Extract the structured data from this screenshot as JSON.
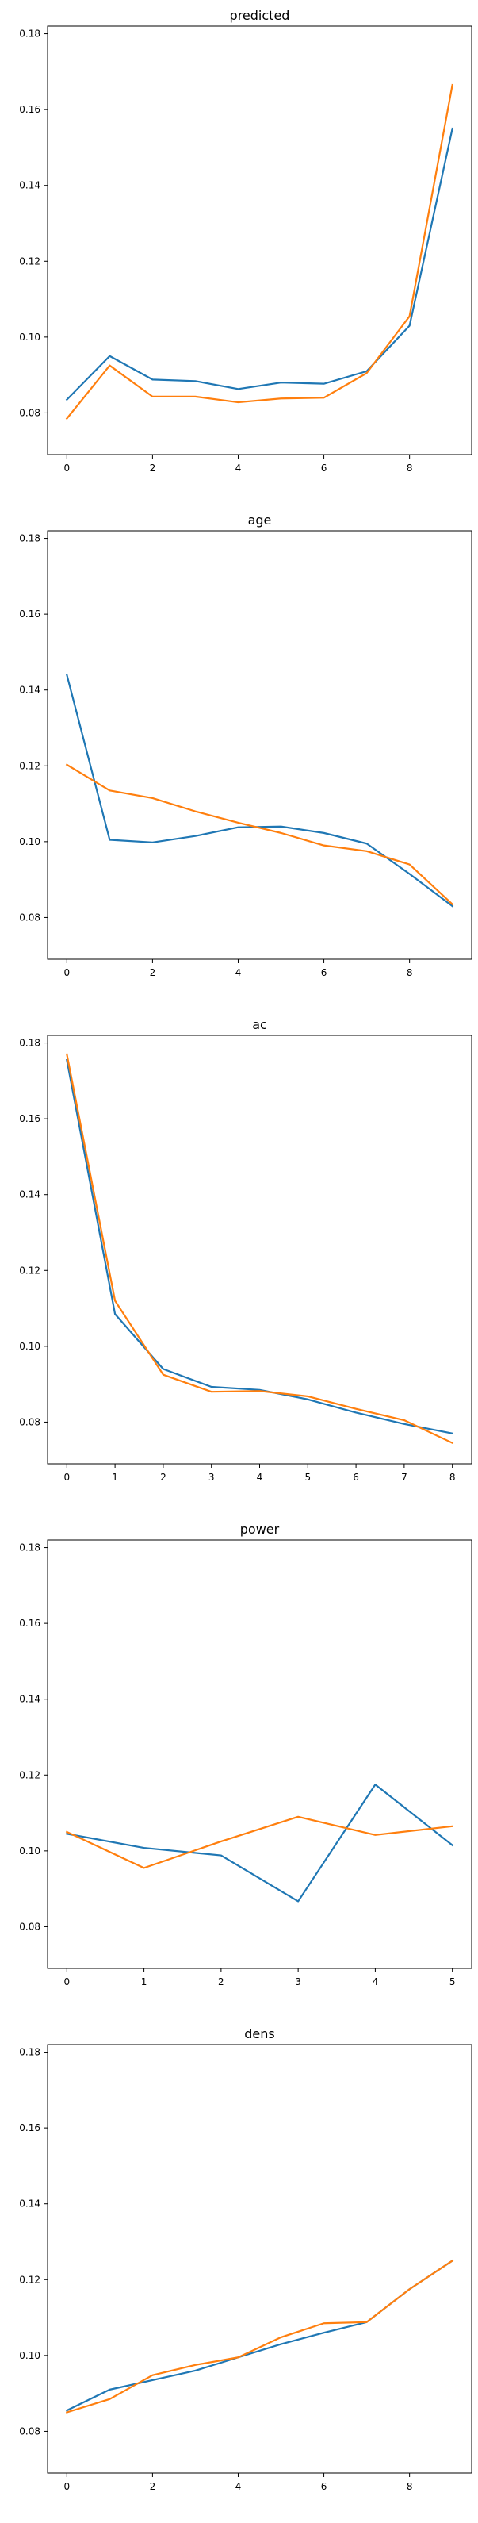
{
  "chart_data": [
    {
      "type": "line",
      "title": "predicted",
      "xlabel": "",
      "ylabel": "",
      "xlim": [
        -0.45,
        9.45
      ],
      "ylim": [
        0.069,
        0.182
      ],
      "xticks": [
        0,
        2,
        4,
        6,
        8
      ],
      "yticks": [
        0.08,
        0.1,
        0.12,
        0.14,
        0.16,
        0.18
      ],
      "series": [
        {
          "color": "#1f77b4",
          "x": [
            0,
            1,
            2,
            3,
            4,
            5,
            6,
            7,
            8,
            9
          ],
          "y": [
            0.0835,
            0.095,
            0.0888,
            0.0884,
            0.0863,
            0.088,
            0.0877,
            0.091,
            0.103,
            0.155
          ]
        },
        {
          "color": "#ff7f0e",
          "x": [
            0,
            1,
            2,
            3,
            4,
            5,
            6,
            7,
            8,
            9
          ],
          "y": [
            0.0785,
            0.0925,
            0.0843,
            0.0843,
            0.0828,
            0.0838,
            0.084,
            0.0905,
            0.1055,
            0.1665
          ]
        }
      ]
    },
    {
      "type": "line",
      "title": "age",
      "xlabel": "",
      "ylabel": "",
      "xlim": [
        -0.45,
        9.45
      ],
      "ylim": [
        0.069,
        0.182
      ],
      "xticks": [
        0,
        2,
        4,
        6,
        8
      ],
      "yticks": [
        0.08,
        0.1,
        0.12,
        0.14,
        0.16,
        0.18
      ],
      "series": [
        {
          "color": "#1f77b4",
          "x": [
            0,
            1,
            2,
            3,
            4,
            5,
            6,
            7,
            8,
            9
          ],
          "y": [
            0.144,
            0.1005,
            0.0998,
            0.1015,
            0.1038,
            0.104,
            0.1023,
            0.0995,
            0.0915,
            0.083
          ]
        },
        {
          "color": "#ff7f0e",
          "x": [
            0,
            1,
            2,
            3,
            4,
            5,
            6,
            7,
            8,
            9
          ],
          "y": [
            0.1203,
            0.1135,
            0.1115,
            0.108,
            0.105,
            0.1023,
            0.099,
            0.0975,
            0.094,
            0.0835
          ]
        }
      ]
    },
    {
      "type": "line",
      "title": "ac",
      "xlabel": "",
      "ylabel": "",
      "xlim": [
        -0.4,
        8.4
      ],
      "ylim": [
        0.069,
        0.182
      ],
      "xticks": [
        0,
        1,
        2,
        3,
        4,
        5,
        6,
        7,
        8
      ],
      "yticks": [
        0.08,
        0.1,
        0.12,
        0.14,
        0.16,
        0.18
      ],
      "series": [
        {
          "color": "#1f77b4",
          "x": [
            0,
            1,
            2,
            3,
            4,
            5,
            6,
            7,
            8
          ],
          "y": [
            0.1755,
            0.1085,
            0.094,
            0.0893,
            0.0885,
            0.086,
            0.0825,
            0.0795,
            0.077
          ]
        },
        {
          "color": "#ff7f0e",
          "x": [
            0,
            1,
            2,
            3,
            4,
            5,
            6,
            7,
            8
          ],
          "y": [
            0.177,
            0.112,
            0.0925,
            0.088,
            0.0882,
            0.0868,
            0.0835,
            0.0805,
            0.0745
          ]
        }
      ]
    },
    {
      "type": "line",
      "title": "power",
      "xlabel": "",
      "ylabel": "",
      "xlim": [
        -0.25,
        5.25
      ],
      "ylim": [
        0.069,
        0.182
      ],
      "xticks": [
        0,
        1,
        2,
        3,
        4,
        5
      ],
      "yticks": [
        0.08,
        0.1,
        0.12,
        0.14,
        0.16,
        0.18
      ],
      "series": [
        {
          "color": "#1f77b4",
          "x": [
            0,
            1,
            2,
            3,
            4,
            5
          ],
          "y": [
            0.1045,
            0.1008,
            0.0988,
            0.0867,
            0.1175,
            0.1015
          ]
        },
        {
          "color": "#ff7f0e",
          "x": [
            0,
            1,
            2,
            3,
            4,
            5
          ],
          "y": [
            0.105,
            0.0955,
            0.1025,
            0.109,
            0.1042,
            0.1065
          ]
        }
      ]
    },
    {
      "type": "line",
      "title": "dens",
      "xlabel": "",
      "ylabel": "",
      "xlim": [
        -0.45,
        9.45
      ],
      "ylim": [
        0.069,
        0.182
      ],
      "xticks": [
        0,
        2,
        4,
        6,
        8
      ],
      "yticks": [
        0.08,
        0.1,
        0.12,
        0.14,
        0.16,
        0.18
      ],
      "series": [
        {
          "color": "#1f77b4",
          "x": [
            0,
            1,
            2,
            3,
            4,
            5,
            6,
            7,
            8,
            9
          ],
          "y": [
            0.0855,
            0.091,
            0.0935,
            0.096,
            0.0995,
            0.103,
            0.106,
            0.1088,
            0.1175,
            0.125
          ]
        },
        {
          "color": "#ff7f0e",
          "x": [
            0,
            1,
            2,
            3,
            4,
            5,
            6,
            7,
            8,
            9
          ],
          "y": [
            0.085,
            0.0885,
            0.0948,
            0.0975,
            0.0995,
            0.1048,
            0.1085,
            0.1088,
            0.1175,
            0.125
          ]
        }
      ]
    }
  ]
}
